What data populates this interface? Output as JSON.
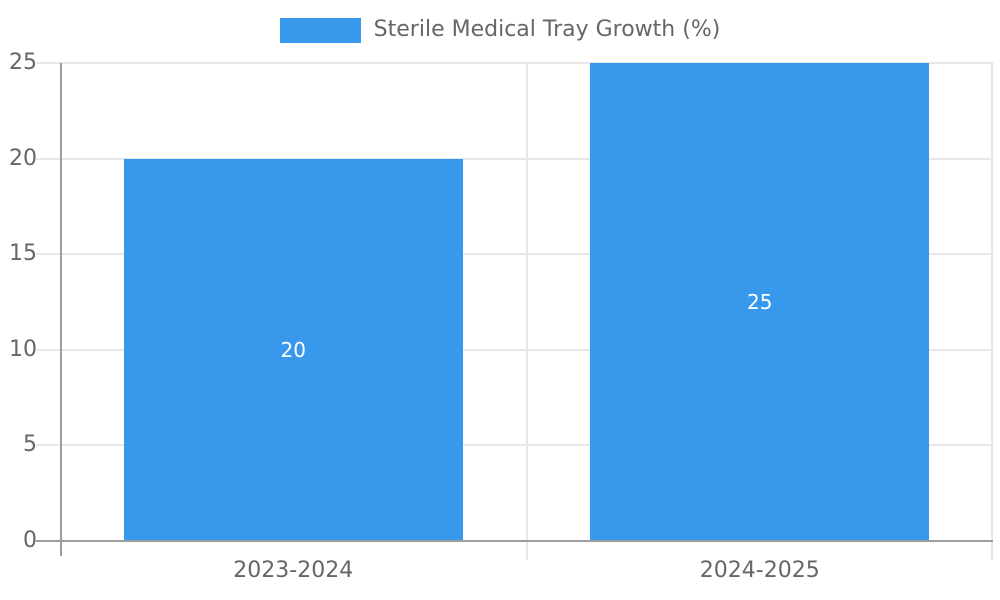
{
  "chart_data": {
    "type": "bar",
    "title": "",
    "legend": {
      "label": "Sterile Medical Tray Growth (%)",
      "position": "top"
    },
    "categories": [
      "2023-2024",
      "2024-2025"
    ],
    "series": [
      {
        "name": "Sterile Medical Tray Growth (%)",
        "values": [
          20,
          25
        ]
      }
    ],
    "data_labels": [
      "20",
      "25"
    ],
    "y_ticks": [
      0,
      5,
      10,
      15,
      20,
      25
    ],
    "ylim": [
      0,
      25
    ],
    "xlabel": "",
    "ylabel": "",
    "grid": true,
    "colors": {
      "bar": "#3898ec",
      "data_label": "#ffffff",
      "axis_text": "#666666",
      "gridline": "#e7e7e7",
      "axis_line": "#9c9c9c"
    }
  }
}
